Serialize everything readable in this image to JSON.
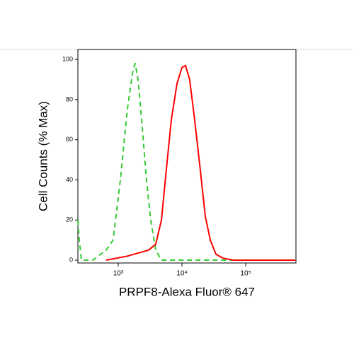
{
  "chart_data": {
    "type": "line",
    "xlabel": "PRPF8-Alexa Fluor® 647",
    "ylabel": "Cell Counts (% Max)",
    "xscale": "log",
    "xlim": [
      233,
      614000
    ],
    "ylim": [
      -1.4,
      105
    ],
    "xticks": [
      {
        "value": 1000,
        "label": "10³"
      },
      {
        "value": 10000,
        "label": "10⁴"
      },
      {
        "value": 100000,
        "label": "10⁵"
      }
    ],
    "yticks": [
      0,
      20,
      40,
      60,
      80,
      100
    ],
    "series": [
      {
        "color": "#33cc33",
        "linestyle": "dashed",
        "x": [
          233,
          245,
          265,
          400,
          646,
          833,
          1080,
          1390,
          1710,
          1850,
          2050,
          2330,
          2780,
          3240,
          3880,
          4760,
          600000
        ],
        "values": [
          20,
          10,
          0,
          0,
          5,
          10,
          40,
          75,
          95,
          98,
          90,
          70,
          40,
          20,
          5,
          0,
          0
        ]
      },
      {
        "color": "#ff0000",
        "linestyle": "solid",
        "x": [
          646,
          1390,
          3000,
          3880,
          4760,
          5690,
          6810,
          8360,
          10000,
          11360,
          13200,
          15800,
          19400,
          23200,
          27800,
          34000,
          44000,
          64600,
          600000
        ],
        "values": [
          0,
          2,
          5,
          8,
          20,
          45,
          70,
          88,
          96,
          97,
          90,
          70,
          45,
          22,
          10,
          3,
          1,
          0,
          0
        ]
      }
    ]
  }
}
